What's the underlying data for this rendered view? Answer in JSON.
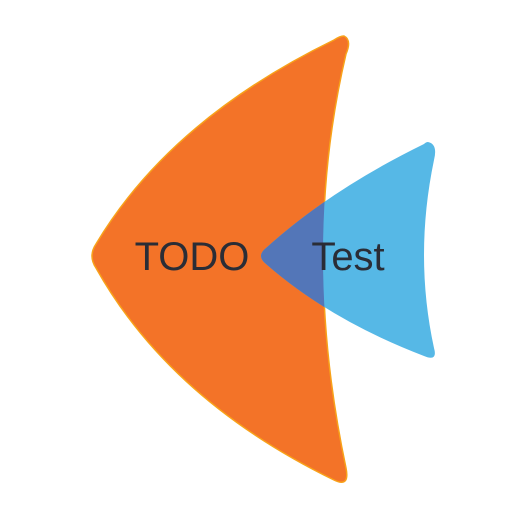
{
  "logo": {
    "left_word": "TODO",
    "right_word": "Test",
    "colors": {
      "orange": "#F37328",
      "orange_edge": "#F8A21A",
      "blue": "#56B8E6",
      "overlap": "#5376B8",
      "text": "#2A2D36",
      "background": "#FFFFFF"
    }
  }
}
